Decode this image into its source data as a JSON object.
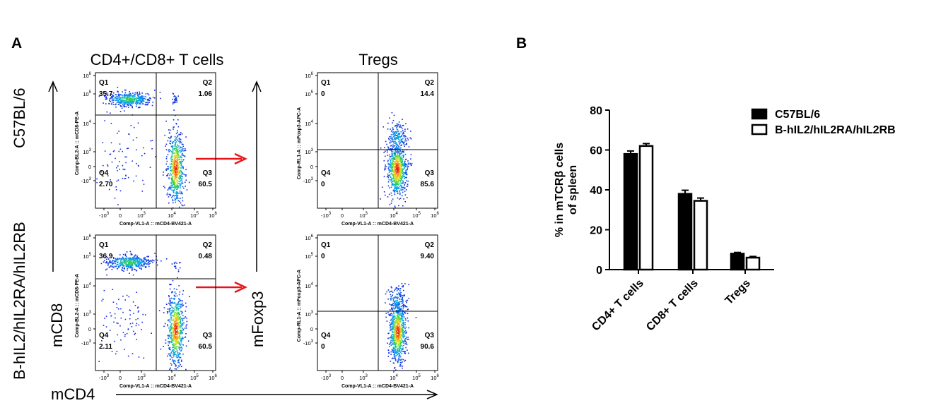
{
  "panel_a": {
    "letter": "A",
    "col_titles": [
      "CD4+/CD8+ T cells",
      "Tregs"
    ],
    "row_labels": [
      "C57BL/6",
      "B-hIL2/hIL2RA/hIL2RB"
    ],
    "axis_x_big": "mCD4",
    "axis_y_big_left": "mCD8",
    "axis_y_big_right": "mFoxp3",
    "plots": [
      {
        "ylabel": "Comp-BL2-A :: mCD8-PE-A",
        "xlabel": "Comp-VL1-A :: mCD4-BV421-A",
        "quadrants": {
          "q1": "Q1",
          "q2": "Q2",
          "q3": "Q3",
          "q4": "Q4"
        },
        "values": {
          "q1": "35.7",
          "q2": "1.06",
          "q3": "60.5",
          "q4": "2.70"
        },
        "yticks": [
          "10",
          "10",
          "10",
          "10",
          "0",
          "-10"
        ],
        "ytick_exp": [
          "6",
          "5",
          "4",
          "3",
          "",
          "3"
        ],
        "xticks": [
          "-10",
          "0",
          "10",
          "10",
          "10",
          "10"
        ],
        "xtick_exp": [
          "3",
          "",
          "3",
          "4",
          "5",
          "6"
        ]
      },
      {
        "ylabel": "Comp-RL1-A :: mFoxp3-APC-A",
        "xlabel": "Comp-VL1-A :: mCD4-BV421-A",
        "quadrants": {
          "q1": "Q1",
          "q2": "Q2",
          "q3": "Q3",
          "q4": "Q4"
        },
        "values": {
          "q1": "0",
          "q2": "14.4",
          "q3": "85.6",
          "q4": "0"
        },
        "yticks": [
          "10",
          "10",
          "10",
          "10",
          "0",
          "-10"
        ],
        "ytick_exp": [
          "6",
          "5",
          "4",
          "3",
          "",
          "3"
        ],
        "xticks": [
          "-10",
          "0",
          "10",
          "10",
          "10",
          "10"
        ],
        "xtick_exp": [
          "3",
          "",
          "3",
          "4",
          "5",
          "6"
        ]
      },
      {
        "ylabel": "Comp-BL2-A :: mCD8-PE-A",
        "xlabel": "Comp-VL1-A :: mCD4-BV421-A",
        "quadrants": {
          "q1": "Q1",
          "q2": "Q2",
          "q3": "Q3",
          "q4": "Q4"
        },
        "values": {
          "q1": "36.9",
          "q2": "0.48",
          "q3": "60.5",
          "q4": "2.11"
        },
        "yticks": [
          "10",
          "10",
          "10",
          "10",
          "0",
          "-10"
        ],
        "ytick_exp": [
          "6",
          "5",
          "4",
          "3",
          "",
          "3"
        ],
        "xticks": [
          "-10",
          "0",
          "10",
          "10",
          "10",
          "10"
        ],
        "xtick_exp": [
          "3",
          "",
          "3",
          "4",
          "5",
          "6"
        ]
      },
      {
        "ylabel": "Comp-RL1-A :: mFoxp3-APC-A",
        "xlabel": "Comp-VL1-A :: mCD4-BV421-A",
        "quadrants": {
          "q1": "Q1",
          "q2": "Q2",
          "q3": "Q3",
          "q4": "Q4"
        },
        "values": {
          "q1": "0",
          "q2": "9.40",
          "q3": "90.6",
          "q4": "0"
        },
        "yticks": [
          "10",
          "10",
          "10",
          "10",
          "0",
          "-10"
        ],
        "ytick_exp": [
          "6",
          "5",
          "4",
          "3",
          "",
          "3"
        ],
        "xticks": [
          "-10",
          "0",
          "10",
          "10",
          "10",
          "10"
        ],
        "xtick_exp": [
          "3",
          "",
          "3",
          "4",
          "5",
          "6"
        ]
      }
    ],
    "colors": {
      "arrow": "#e8141b",
      "gate_line": "#000000"
    }
  },
  "panel_b": {
    "letter": "B",
    "chart_data": {
      "type": "bar",
      "categories": [
        "CD4+ T cells",
        "CD8+ T cells",
        "Tregs"
      ],
      "series": [
        {
          "name": "C57BL/6",
          "values": [
            58,
            38,
            8
          ],
          "errors": [
            1.5,
            1.8,
            0.6
          ],
          "fill": "#000000"
        },
        {
          "name": "B-hIL2/hIL2RA/hIL2RB",
          "values": [
            62,
            34.5,
            6
          ],
          "errors": [
            1.2,
            1.4,
            0.6
          ],
          "fill": "#ffffff"
        }
      ],
      "ylabel": "% in mTCRβ cells\nof spleen",
      "ylabel_lines": [
        "% in mTCRβ cells",
        "of spleen"
      ],
      "ylim": [
        0,
        80
      ],
      "yticks": [
        0,
        20,
        40,
        60,
        80
      ],
      "legend": "top-right"
    }
  }
}
